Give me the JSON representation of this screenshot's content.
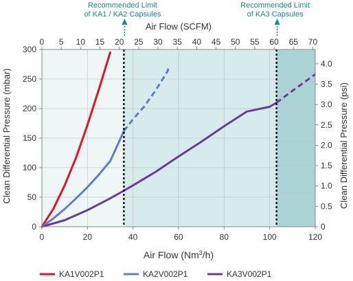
{
  "chart_data": {
    "type": "line",
    "x_bottom": {
      "label_main": "Air Flow (Nm",
      "label_sup": "3",
      "label_end": "/h)",
      "range": [
        0,
        120
      ],
      "ticks": [
        0,
        20,
        40,
        60,
        80,
        100,
        120
      ]
    },
    "x_top": {
      "label": "Air Flow (SCFM)",
      "range": [
        0,
        70.63
      ],
      "ticks": [
        0,
        5,
        10,
        15,
        20,
        25,
        30,
        35,
        40,
        45,
        50,
        55,
        60,
        65,
        70
      ]
    },
    "y_left": {
      "label": "Clean Differential Pressure (mbar)",
      "range": [
        0,
        300
      ],
      "ticks": [
        0,
        50,
        100,
        150,
        200,
        250,
        300
      ]
    },
    "y_right": {
      "label": "Clean Differential Pressure (psi)",
      "range": [
        0,
        4.351
      ],
      "ticks": [
        "0",
        "0.5",
        "1.0",
        "1.5",
        "2.0",
        "2.5",
        "3.0",
        "3.5",
        "4.0"
      ]
    },
    "regions": [
      {
        "name": "ka1-ka2-range",
        "x_from": 0,
        "x_to": 36,
        "color": "#eef6f6"
      },
      {
        "name": "ka3-range",
        "x_from": 36,
        "x_to": 103,
        "color": "#d6ebeb"
      },
      {
        "name": "beyond-limit",
        "x_from": 103,
        "x_to": 120,
        "color": "#abd3d3"
      }
    ],
    "limits": [
      {
        "name": "limit-ka1-ka2",
        "x": 36,
        "label_lines": [
          "Recommended Limit",
          "of KA1 / KA2 Capsules"
        ],
        "color": "#1a8c8c"
      },
      {
        "name": "limit-ka3",
        "x": 103,
        "label_lines": [
          "Recommended Limit",
          "of KA3 Capsules"
        ],
        "color": "#1a8c8c"
      }
    ],
    "series": [
      {
        "name": "KA1V002P1",
        "color": "#e0132a",
        "x": [
          0,
          5,
          10,
          15,
          20,
          25,
          30
        ],
        "y": [
          0,
          30,
          70,
          117,
          172,
          232,
          295
        ],
        "dashed_from": null
      },
      {
        "name": "KA2V002P1",
        "color": "#5b82bf",
        "x": [
          0,
          5,
          10,
          15,
          20,
          25,
          30,
          36,
          40,
          45,
          50,
          55,
          56
        ],
        "y": [
          0,
          14,
          30,
          48,
          67,
          88,
          111,
          162,
          182,
          204,
          231,
          262,
          272
        ],
        "dashed_from": 36
      },
      {
        "name": "KA3V002P1",
        "color": "#6a3c96",
        "x": [
          0,
          10,
          20,
          30,
          36,
          40,
          50,
          60,
          70,
          80,
          90,
          100,
          103,
          110,
          120
        ],
        "y": [
          0,
          11,
          28,
          48,
          61,
          70,
          93,
          119,
          144,
          170,
          195,
          203,
          210,
          230,
          258
        ],
        "dashed_from": 103
      }
    ],
    "legend": {
      "position": "bottom"
    },
    "grid": true
  }
}
